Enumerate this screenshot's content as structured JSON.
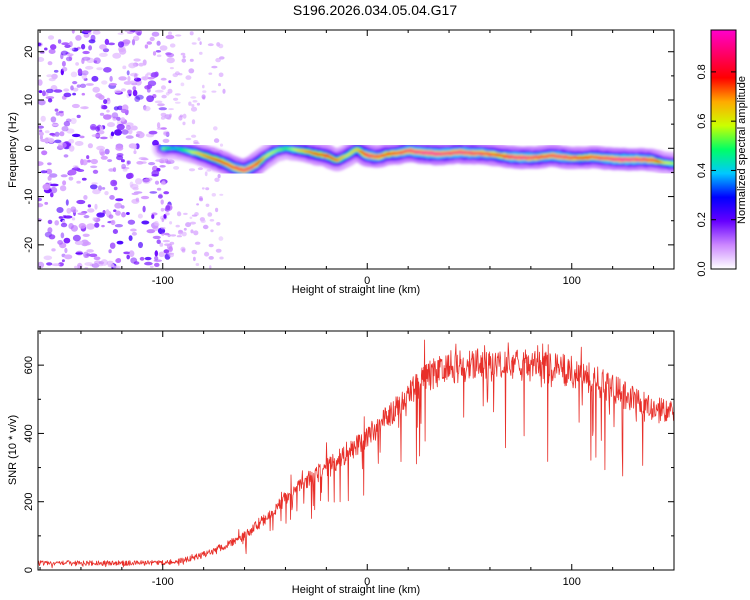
{
  "title": "S196.2026.034.05.04.G17",
  "chart_data": [
    {
      "type": "heatmap",
      "xlabel": "Height of straight line (km)",
      "ylabel": "Frequency (Hz)",
      "xlim": [
        -161,
        150
      ],
      "ylim": [
        -25,
        24.5
      ],
      "xticks": [
        -100,
        0,
        100
      ],
      "yticks": [
        20,
        10,
        0,
        -10,
        -20
      ],
      "colorbar": {
        "label": "Normalized spectral amplitude",
        "range": [
          0,
          0.97
        ],
        "ticks": [
          0.0,
          0.2,
          0.4,
          0.6,
          0.8
        ],
        "colors": [
          "#ffffff",
          "#cc88ff",
          "#6600ff",
          "#0000ff",
          "#00c8ff",
          "#00ff66",
          "#ccff00",
          "#ffaa00",
          "#ff0000",
          "#ff0066",
          "#ff00cc"
        ]
      },
      "noise_region_x": [
        -161,
        -100
      ],
      "track": {
        "x": [
          -100,
          -95,
          -90,
          -85,
          -80,
          -75,
          -70,
          -65,
          -60,
          -55,
          -50,
          -45,
          -40,
          -35,
          -30,
          -25,
          -20,
          -15,
          -10,
          -5,
          0,
          5,
          10,
          15,
          20,
          25,
          30,
          35,
          40,
          45,
          50,
          55,
          60,
          65,
          70,
          75,
          80,
          85,
          90,
          95,
          100,
          105,
          110,
          115,
          120,
          125,
          130,
          135,
          140,
          145,
          150
        ],
        "frequency": [
          0,
          0,
          -0.3,
          -0.8,
          -1.5,
          -2.2,
          -3,
          -4,
          -4.6,
          -3.5,
          -1.8,
          -0.5,
          0,
          -0.3,
          -0.6,
          -1.2,
          -1.5,
          -2.5,
          -1.5,
          -0.2,
          -1.5,
          -1.8,
          -1.2,
          -1,
          -0.5,
          -0.8,
          -1,
          -1.2,
          -1,
          -0.8,
          -1,
          -1,
          -1.2,
          -1.5,
          -1.8,
          -1.9,
          -2,
          -1.8,
          -1.5,
          -1.8,
          -2,
          -2,
          -1.8,
          -2,
          -2.2,
          -2.3,
          -2.3,
          -2.3,
          -2.5,
          -3,
          -3.2
        ],
        "amplitude": [
          0.55,
          0.4,
          0.5,
          0.6,
          0.7,
          0.75,
          0.8,
          0.85,
          0.9,
          0.85,
          0.6,
          0.55,
          0.5,
          0.6,
          0.7,
          0.75,
          0.8,
          0.7,
          0.6,
          0.65,
          0.9,
          0.85,
          0.8,
          0.85,
          0.9,
          0.92,
          0.95,
          0.93,
          0.9,
          0.92,
          0.9,
          0.88,
          0.85,
          0.8,
          0.9,
          0.92,
          0.9,
          0.85,
          0.88,
          0.9,
          0.85,
          0.8,
          0.85,
          0.88,
          0.92,
          0.95,
          0.93,
          0.9,
          0.85,
          0.6,
          0.55
        ]
      }
    },
    {
      "type": "line",
      "xlabel": "Height of straight line (km)",
      "ylabel": "SNR (10 * v/v)",
      "xlim": [
        -161,
        150
      ],
      "ylim": [
        0,
        700
      ],
      "xticks": [
        -100,
        0,
        100
      ],
      "yticks": [
        0,
        200,
        400,
        600
      ],
      "line_color": "#e8302a",
      "envelope": {
        "x": [
          -161,
          -140,
          -120,
          -100,
          -90,
          -80,
          -70,
          -60,
          -50,
          -40,
          -30,
          -20,
          -10,
          0,
          10,
          20,
          30,
          40,
          50,
          60,
          70,
          80,
          90,
          100,
          110,
          120,
          130,
          140,
          150
        ],
        "y": [
          20,
          20,
          20,
          22,
          28,
          45,
          70,
          100,
          150,
          210,
          260,
          300,
          340,
          390,
          450,
          520,
          570,
          590,
          600,
          600,
          600,
          600,
          590,
          580,
          560,
          530,
          500,
          470,
          460
        ]
      }
    }
  ]
}
